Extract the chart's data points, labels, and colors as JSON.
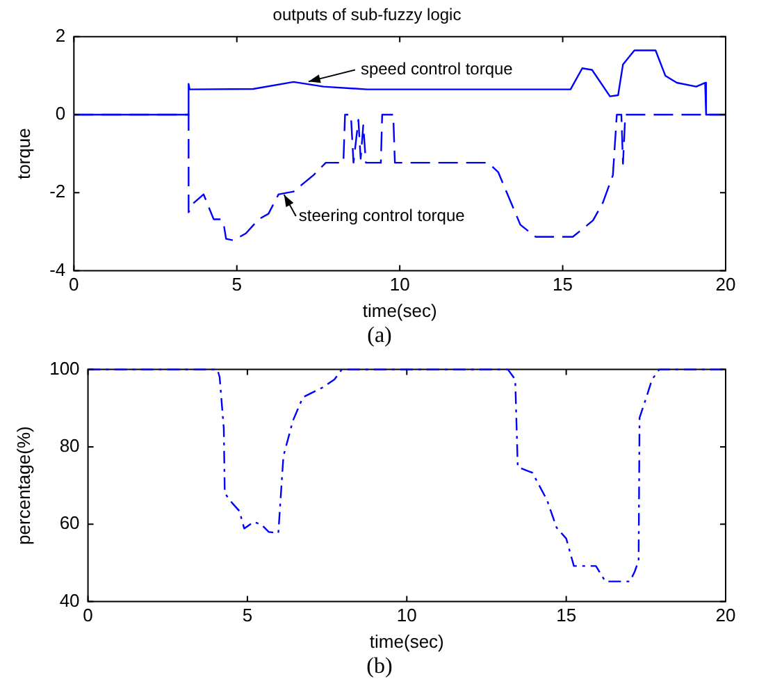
{
  "chart_data": [
    {
      "type": "line",
      "title": "outputs of sub-fuzzy logic",
      "xlabel": "time(sec)",
      "ylabel": "torque",
      "xlim": [
        0,
        20
      ],
      "xticks": [
        0,
        5,
        10,
        15,
        20
      ],
      "ylim": [
        -4,
        2
      ],
      "yticks": [
        -4,
        -2,
        0,
        2
      ],
      "grid": false,
      "legend": false,
      "marker": "none",
      "annotations": [
        "(a)"
      ],
      "series": [
        {
          "name": "speed control torque",
          "color": "#0000ff",
          "line_style": "solid",
          "x": [
            0,
            3.52,
            3.52,
            3.55,
            5.5,
            6.74,
            7.66,
            9.0,
            15.24,
            15.6,
            15.9,
            16.45,
            16.7,
            16.85,
            17.2,
            17.85,
            18.15,
            18.5,
            19.1,
            19.37,
            19.4,
            20
          ],
          "values": [
            0,
            0,
            0.79,
            0.65,
            0.66,
            0.84,
            0.72,
            0.65,
            0.65,
            1.19,
            1.15,
            0.47,
            0.5,
            1.29,
            1.65,
            1.65,
            1.0,
            0.82,
            0.72,
            0.82,
            0,
            0
          ]
        },
        {
          "name": "steering control torque",
          "color": "#0000ff",
          "line_style": "dashed",
          "x": [
            0,
            3.52,
            3.52,
            3.68,
            3.98,
            4.29,
            4.52,
            4.6,
            4.67,
            4.9,
            5.28,
            5.67,
            5.97,
            6.28,
            6.74,
            7.35,
            7.73,
            8.27,
            8.32,
            8.5,
            8.58,
            8.73,
            8.8,
            8.88,
            8.96,
            9.42,
            9.46,
            9.8,
            9.85,
            12.71,
            13.02,
            13.7,
            14.17,
            15.31,
            15.93,
            16.23,
            16.54,
            16.66,
            16.8,
            16.85,
            16.92,
            20
          ],
          "values": [
            0,
            0,
            -2.5,
            -2.26,
            -2.04,
            -2.68,
            -2.68,
            -2.82,
            -3.18,
            -3.22,
            -3.04,
            -2.68,
            -2.54,
            -2.04,
            -1.97,
            -1.55,
            -1.23,
            -1.23,
            0,
            0,
            -1.23,
            -0.13,
            -1.13,
            -0.27,
            -1.23,
            -1.23,
            0,
            0,
            -1.23,
            -1.23,
            -1.47,
            -2.82,
            -3.13,
            -3.13,
            -2.71,
            -2.26,
            -1.55,
            0,
            0,
            -1.26,
            0,
            0
          ]
        }
      ]
    },
    {
      "type": "line",
      "xlabel": "time(sec)",
      "ylabel": "percentage(%)",
      "xlim": [
        0,
        20
      ],
      "xticks": [
        0,
        5,
        10,
        15,
        20
      ],
      "ylim": [
        40,
        100
      ],
      "yticks": [
        40,
        60,
        80,
        100
      ],
      "grid": false,
      "legend": false,
      "marker": "none",
      "line_style": "dashed",
      "annotations": [
        "(b)"
      ],
      "series": [
        {
          "color": "#0000ff",
          "x": [
            0,
            4.06,
            4.13,
            4.26,
            4.29,
            4.52,
            4.75,
            4.9,
            5.2,
            5.44,
            5.67,
            5.97,
            6.13,
            6.43,
            6.74,
            7.35,
            7.73,
            7.96,
            13.17,
            13.4,
            13.48,
            13.94,
            14.4,
            14.7,
            15.0,
            15.24,
            15.93,
            16.23,
            17.0,
            17.15,
            17.27,
            17.3,
            17.53,
            17.69,
            17.92,
            20
          ],
          "values": [
            100,
            100,
            98,
            84.7,
            68,
            65.5,
            63.4,
            58.9,
            60.6,
            59.9,
            58,
            57.7,
            77.6,
            86.8,
            92.8,
            95.3,
            97.4,
            100,
            100,
            97.4,
            74.8,
            73.3,
            66.2,
            59.1,
            56.3,
            49.2,
            49.2,
            45.2,
            45.2,
            47.8,
            50.6,
            87.5,
            93.2,
            97.4,
            100,
            100
          ]
        }
      ]
    }
  ]
}
